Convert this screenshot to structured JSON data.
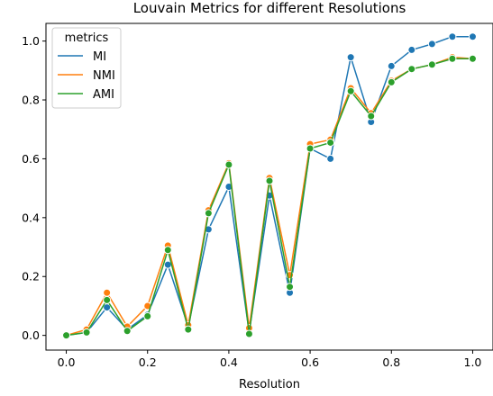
{
  "chart_data": {
    "type": "line",
    "title": "Louvain Metrics for different Resolutions",
    "xlabel": "Resolution",
    "ylabel": "",
    "xlim": [
      -0.05,
      1.05
    ],
    "ylim": [
      -0.05,
      1.06
    ],
    "xticks": [
      "0.0",
      "0.2",
      "0.4",
      "0.6",
      "0.8",
      "1.0"
    ],
    "yticks": [
      "0.0",
      "0.2",
      "0.4",
      "0.6",
      "0.8",
      "1.0"
    ],
    "grid": false,
    "legend": {
      "title": "metrics",
      "position": "upper-left"
    },
    "x": [
      0.0,
      0.05,
      0.1,
      0.15,
      0.2,
      0.25,
      0.3,
      0.35,
      0.4,
      0.45,
      0.5,
      0.55,
      0.6,
      0.65,
      0.7,
      0.75,
      0.8,
      0.85,
      0.9,
      0.95,
      1.0
    ],
    "series": [
      {
        "name": "MI",
        "color": "#1f77b4",
        "values": [
          0.0,
          0.01,
          0.095,
          0.02,
          0.07,
          0.24,
          0.03,
          0.36,
          0.505,
          0.01,
          0.475,
          0.145,
          0.635,
          0.6,
          0.945,
          0.725,
          0.915,
          0.97,
          0.99,
          1.015,
          1.015
        ]
      },
      {
        "name": "NMI",
        "color": "#ff7f0e",
        "values": [
          0.0,
          0.02,
          0.145,
          0.03,
          0.1,
          0.305,
          0.035,
          0.425,
          0.585,
          0.025,
          0.535,
          0.205,
          0.65,
          0.665,
          0.84,
          0.755,
          0.865,
          0.905,
          0.92,
          0.945,
          0.94
        ]
      },
      {
        "name": "AMI",
        "color": "#2ca02c",
        "values": [
          0.0,
          0.01,
          0.12,
          0.015,
          0.065,
          0.29,
          0.02,
          0.415,
          0.58,
          0.005,
          0.525,
          0.165,
          0.635,
          0.655,
          0.83,
          0.745,
          0.86,
          0.905,
          0.92,
          0.94,
          0.94
        ]
      }
    ]
  }
}
